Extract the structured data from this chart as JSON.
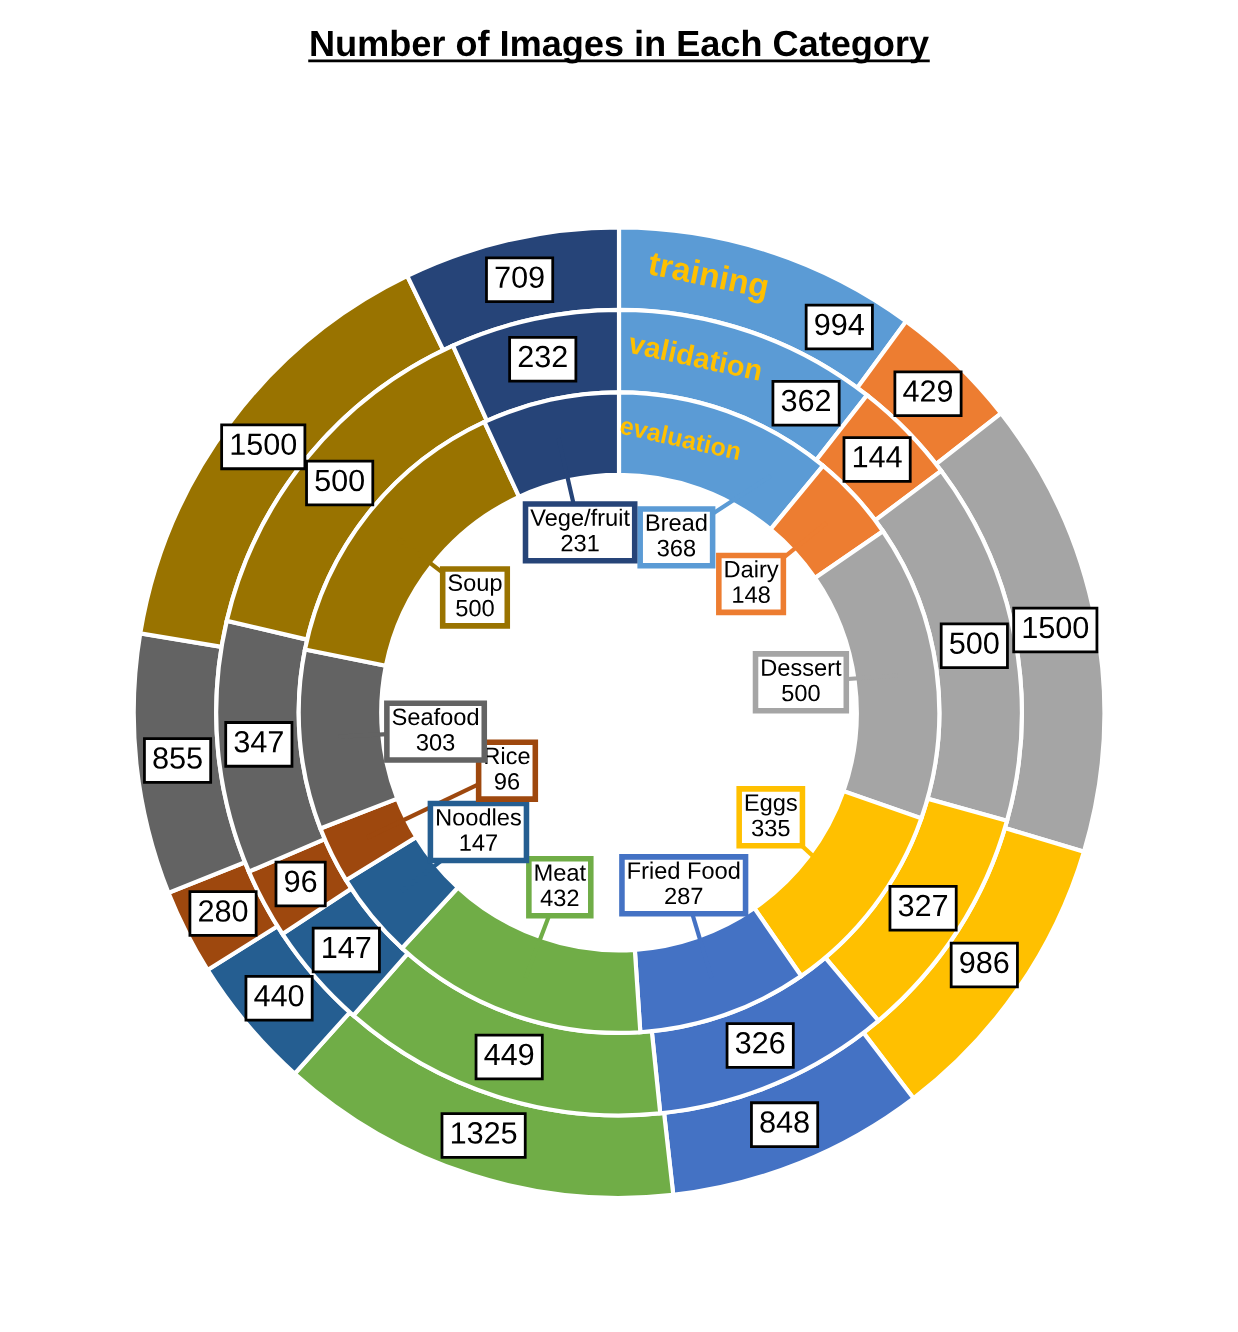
{
  "chart_data": {
    "type": "donut",
    "title": "Number of Images in Each Category",
    "categories": [
      "Bread",
      "Dairy",
      "Dessert",
      "Eggs",
      "Fried Food",
      "Meat",
      "Noodles",
      "Rice",
      "Seafood",
      "Soup",
      "Vege/fruit"
    ],
    "colors": [
      "#5b9bd5",
      "#ed7d31",
      "#a5a5a5",
      "#ffc000",
      "#4472c4",
      "#70ad47",
      "#255e91",
      "#9e480e",
      "#636363",
      "#997300",
      "#264478"
    ],
    "series": [
      {
        "name": "training",
        "values": [
          994,
          429,
          1500,
          986,
          848,
          1325,
          440,
          280,
          855,
          1500,
          709
        ]
      },
      {
        "name": "validation",
        "values": [
          362,
          144,
          500,
          327,
          326,
          449,
          147,
          96,
          347,
          500,
          232
        ]
      },
      {
        "name": "evaluation",
        "values": [
          368,
          148,
          500,
          335,
          287,
          432,
          147,
          96,
          303,
          500,
          231
        ]
      }
    ],
    "data_labels": true
  }
}
